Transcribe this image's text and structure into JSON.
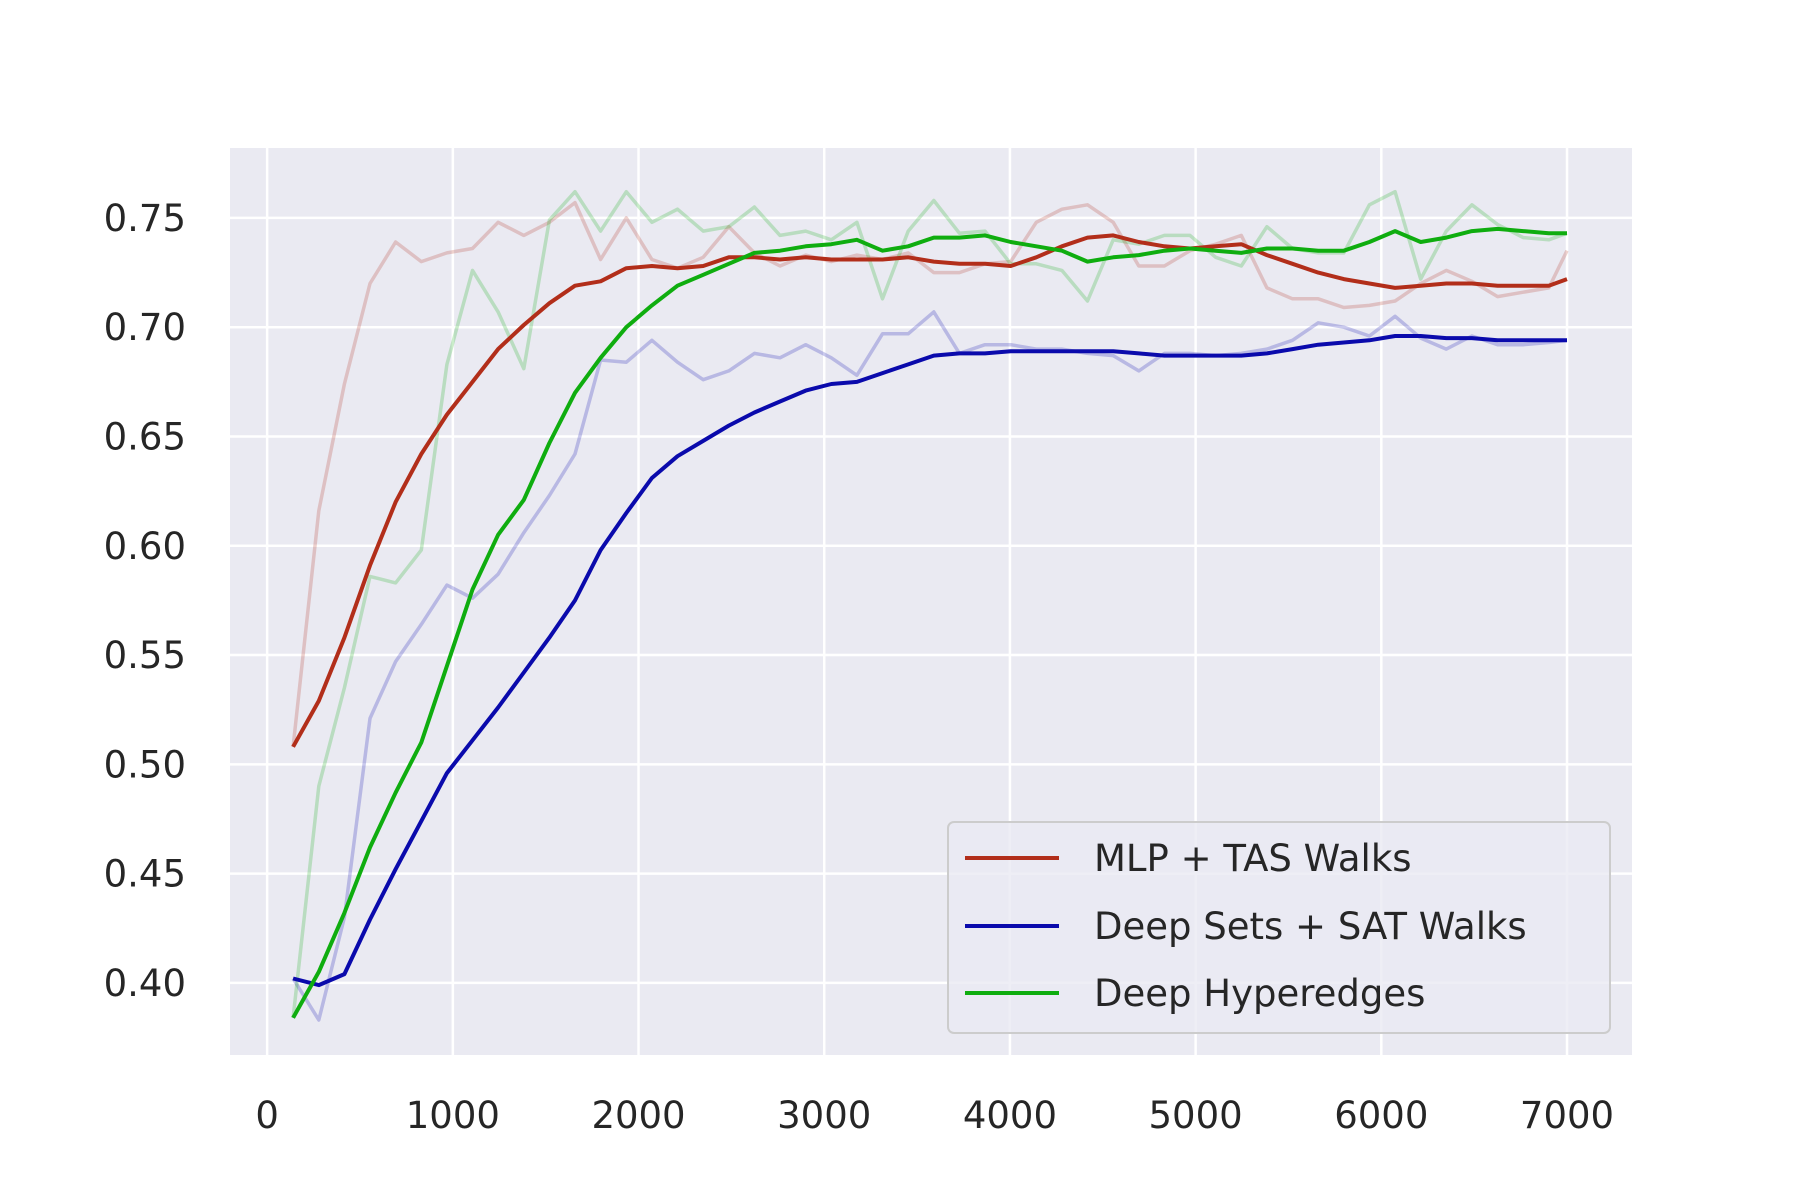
{
  "chart_data": {
    "type": "line",
    "title": "",
    "xlabel": "",
    "ylabel": "",
    "xlim": [
      -200,
      7350
    ],
    "ylim": [
      0.367,
      0.782
    ],
    "x_ticks": [
      0,
      1000,
      2000,
      3000,
      4000,
      5000,
      6000,
      7000
    ],
    "x_tick_labels": [
      "0",
      "1000",
      "2000",
      "3000",
      "4000",
      "5000",
      "6000",
      "7000"
    ],
    "y_ticks": [
      0.4,
      0.45,
      0.5,
      0.55,
      0.6,
      0.65,
      0.7,
      0.75
    ],
    "y_tick_labels": [
      "0.40",
      "0.45",
      "0.50",
      "0.55",
      "0.60",
      "0.65",
      "0.70",
      "0.75"
    ],
    "grid": true,
    "legend_position": "lower-right",
    "x": [
      140,
      278,
      416,
      554,
      692,
      830,
      968,
      1106,
      1244,
      1382,
      1520,
      1658,
      1796,
      1934,
      2072,
      2210,
      2348,
      2486,
      2624,
      2762,
      2900,
      3038,
      3176,
      3314,
      3452,
      3590,
      3728,
      3866,
      4004,
      4142,
      4280,
      4418,
      4556,
      4694,
      4832,
      4970,
      5108,
      5246,
      5384,
      5522,
      5660,
      5798,
      5936,
      6074,
      6212,
      6350,
      6488,
      6626,
      6764,
      6902,
      7000
    ],
    "series": [
      {
        "name": "MLP + TAS Walks",
        "color": "#b22e1a",
        "raw": [
          0.508,
          0.616,
          0.674,
          0.72,
          0.739,
          0.73,
          0.734,
          0.736,
          0.748,
          0.742,
          0.748,
          0.757,
          0.731,
          0.75,
          0.731,
          0.727,
          0.732,
          0.746,
          0.734,
          0.728,
          0.733,
          0.73,
          0.733,
          0.731,
          0.734,
          0.725,
          0.725,
          0.729,
          0.73,
          0.748,
          0.754,
          0.756,
          0.748,
          0.728,
          0.728,
          0.735,
          0.738,
          0.742,
          0.718,
          0.713,
          0.713,
          0.709,
          0.71,
          0.712,
          0.72,
          0.726,
          0.721,
          0.714,
          0.716,
          0.718,
          0.735
        ],
        "smoothed": [
          0.508,
          0.529,
          0.558,
          0.591,
          0.62,
          0.642,
          0.66,
          0.675,
          0.69,
          0.701,
          0.711,
          0.719,
          0.721,
          0.727,
          0.728,
          0.727,
          0.728,
          0.732,
          0.732,
          0.731,
          0.732,
          0.731,
          0.731,
          0.731,
          0.732,
          0.73,
          0.729,
          0.729,
          0.728,
          0.732,
          0.737,
          0.741,
          0.742,
          0.739,
          0.737,
          0.736,
          0.737,
          0.738,
          0.733,
          0.729,
          0.725,
          0.722,
          0.72,
          0.718,
          0.719,
          0.72,
          0.72,
          0.719,
          0.719,
          0.719,
          0.722
        ]
      },
      {
        "name": "Deep Sets + SAT Walks",
        "color": "#0a0aac",
        "raw": [
          0.402,
          0.383,
          0.43,
          0.521,
          0.547,
          0.564,
          0.582,
          0.576,
          0.587,
          0.606,
          0.623,
          0.642,
          0.685,
          0.684,
          0.694,
          0.684,
          0.676,
          0.68,
          0.688,
          0.686,
          0.692,
          0.686,
          0.678,
          0.697,
          0.697,
          0.707,
          0.688,
          0.692,
          0.692,
          0.69,
          0.69,
          0.688,
          0.687,
          0.68,
          0.688,
          0.688,
          0.687,
          0.688,
          0.69,
          0.694,
          0.702,
          0.7,
          0.696,
          0.705,
          0.695,
          0.69,
          0.696,
          0.692,
          0.692,
          0.693,
          0.694
        ],
        "smoothed": [
          0.402,
          0.399,
          0.404,
          0.429,
          0.452,
          0.474,
          0.496,
          0.511,
          0.526,
          0.542,
          0.558,
          0.575,
          0.598,
          0.615,
          0.631,
          0.641,
          0.648,
          0.655,
          0.661,
          0.666,
          0.671,
          0.674,
          0.675,
          0.679,
          0.683,
          0.687,
          0.688,
          0.688,
          0.689,
          0.689,
          0.689,
          0.689,
          0.689,
          0.688,
          0.687,
          0.687,
          0.687,
          0.687,
          0.688,
          0.69,
          0.692,
          0.693,
          0.694,
          0.696,
          0.696,
          0.695,
          0.695,
          0.694,
          0.694,
          0.694,
          0.694
        ]
      },
      {
        "name": "Deep Hyperedges",
        "color": "#0fad0f",
        "raw": [
          0.384,
          0.49,
          0.535,
          0.586,
          0.583,
          0.598,
          0.683,
          0.726,
          0.707,
          0.681,
          0.749,
          0.762,
          0.744,
          0.762,
          0.748,
          0.754,
          0.744,
          0.746,
          0.755,
          0.742,
          0.744,
          0.74,
          0.748,
          0.713,
          0.744,
          0.758,
          0.743,
          0.744,
          0.729,
          0.729,
          0.726,
          0.712,
          0.74,
          0.738,
          0.742,
          0.742,
          0.732,
          0.728,
          0.746,
          0.736,
          0.734,
          0.734,
          0.756,
          0.762,
          0.722,
          0.744,
          0.756,
          0.747,
          0.741,
          0.74,
          0.743
        ],
        "smoothed": [
          0.384,
          0.405,
          0.432,
          0.462,
          0.487,
          0.51,
          0.545,
          0.58,
          0.605,
          0.621,
          0.647,
          0.67,
          0.686,
          0.7,
          0.71,
          0.719,
          0.724,
          0.729,
          0.734,
          0.735,
          0.737,
          0.738,
          0.74,
          0.735,
          0.737,
          0.741,
          0.741,
          0.742,
          0.739,
          0.737,
          0.735,
          0.73,
          0.732,
          0.733,
          0.735,
          0.736,
          0.735,
          0.734,
          0.736,
          0.736,
          0.735,
          0.735,
          0.739,
          0.744,
          0.739,
          0.741,
          0.744,
          0.745,
          0.744,
          0.743,
          0.743
        ]
      }
    ]
  }
}
